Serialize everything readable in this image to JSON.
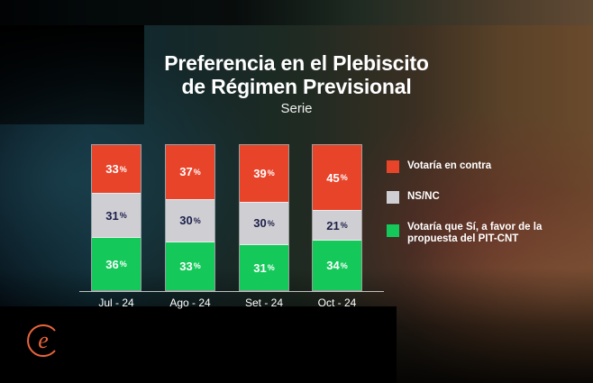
{
  "header": {
    "title_line1": "Preferencia en el Plebiscito",
    "title_line2": "de Régimen Previsional",
    "subtitle": "Serie"
  },
  "colors": {
    "contra": "#e8442a",
    "nsnc": "#cfcfd3",
    "favor": "#14c95a",
    "logo": "#e8643a"
  },
  "bars": [
    {
      "label": "Jul - 24",
      "contra": "33",
      "nsnc": "31",
      "favor": "36"
    },
    {
      "label": "Ago - 24",
      "contra": "37",
      "nsnc": "30",
      "favor": "33"
    },
    {
      "label": "Set - 24",
      "contra": "39",
      "nsnc": "30",
      "favor": "31"
    },
    {
      "label": "Oct - 24",
      "contra": "45",
      "nsnc": "21",
      "favor": "34"
    }
  ],
  "percent_sign": "%",
  "legend": [
    {
      "label": "Votaría en contra"
    },
    {
      "label": "NS/NC"
    },
    {
      "label": "Votaría que Sí, a favor de la propuesta del PIT-CNT"
    }
  ],
  "logo": {
    "icon": "e-logo-icon"
  },
  "chart_data": {
    "type": "bar",
    "stacked": true,
    "orientation": "vertical",
    "title": "Preferencia en el Plebiscito de Régimen Previsional",
    "subtitle": "Serie",
    "categories": [
      "Jul - 24",
      "Ago - 24",
      "Set - 24",
      "Oct - 24"
    ],
    "series": [
      {
        "name": "Votaría que Sí, a favor de la propuesta del PIT-CNT",
        "color": "#14c95a",
        "values": [
          36,
          33,
          31,
          34
        ]
      },
      {
        "name": "NS/NC",
        "color": "#cfcfd3",
        "values": [
          31,
          30,
          30,
          21
        ]
      },
      {
        "name": "Votaría en contra",
        "color": "#e8442a",
        "values": [
          33,
          37,
          39,
          45
        ]
      }
    ],
    "xlabel": "",
    "ylabel": "",
    "ylim": [
      0,
      100
    ],
    "unit": "%",
    "grid": false,
    "legend_position": "right"
  }
}
